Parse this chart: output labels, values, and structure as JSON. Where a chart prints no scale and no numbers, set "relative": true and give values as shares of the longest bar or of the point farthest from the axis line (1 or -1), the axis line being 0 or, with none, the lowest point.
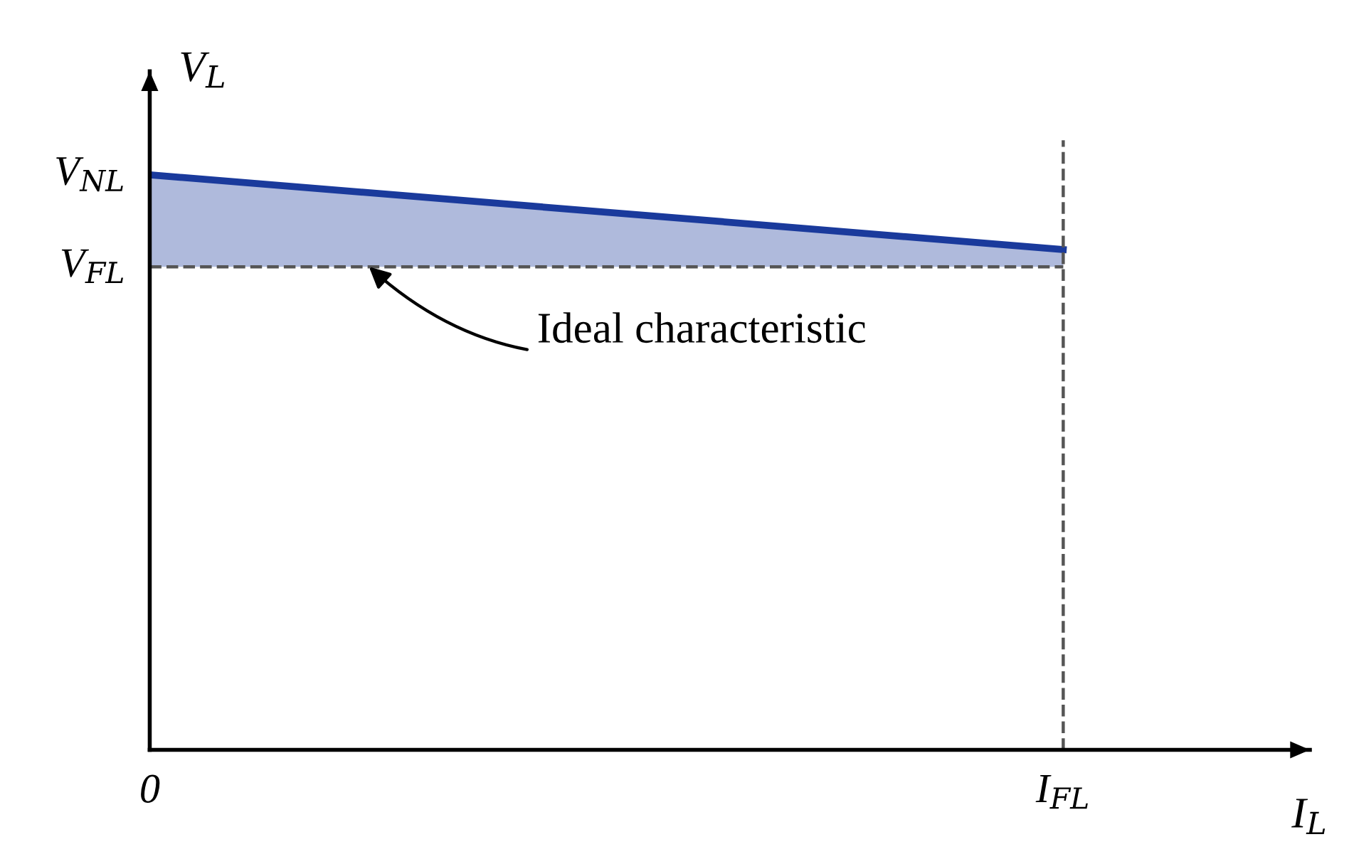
{
  "chart_data": {
    "type": "line",
    "relative": true,
    "xlabel": "I$_{L}$",
    "ylabel": "V$_{L}$",
    "categories": [
      "0",
      "I$_{FL}$"
    ],
    "series": [
      {
        "color": "#1a3a9c",
        "values": [
          1.0,
          0.87
        ],
        "lower": [
          0.84,
          0.84
        ],
        "upper": [
          1.0,
          0.87
        ]
      }
    ],
    "ref_lines": [
      {
        "axis": "y",
        "value": 0.84,
        "line_style": "dashed",
        "color": "#555555"
      },
      {
        "axis": "x",
        "value": "I$_{FL}$",
        "line_style": "dashed",
        "color": "#555555"
      }
    ],
    "annotations": [
      {
        "text": "Ideal characteristic",
        "y": 0.84
      },
      {
        "text": "V$_{NL}$",
        "x": "0",
        "y": 1.0
      },
      {
        "text": "V$_{FL}$",
        "x": "0",
        "y": 0.84
      }
    ],
    "grid": false,
    "legend": false,
    "marker": "none",
    "line_style": "solid"
  }
}
